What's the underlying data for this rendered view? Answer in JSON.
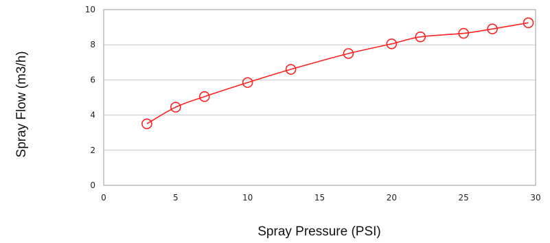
{
  "chart_data": {
    "type": "line",
    "title": "",
    "xlabel": "Spray Pressure (PSI)",
    "ylabel": "Spray Flow  (m3/h)",
    "xlim": [
      0,
      30
    ],
    "ylim": [
      0,
      10
    ],
    "xticks": [
      0,
      5,
      10,
      15,
      20,
      25,
      30
    ],
    "yticks": [
      0,
      2,
      4,
      6,
      8,
      10
    ],
    "grid": "horizontal",
    "series": [
      {
        "color": "#ff2020",
        "marker": "open-circle",
        "x": [
          3,
          5,
          7,
          10,
          13,
          17,
          20,
          22,
          25,
          27,
          29.5
        ],
        "y": [
          3.5,
          4.45,
          5.05,
          5.85,
          6.6,
          7.5,
          8.05,
          8.45,
          8.65,
          8.9,
          9.25
        ]
      }
    ],
    "colors": {
      "grid": "#c8c8c8",
      "frame": "#999999"
    }
  }
}
